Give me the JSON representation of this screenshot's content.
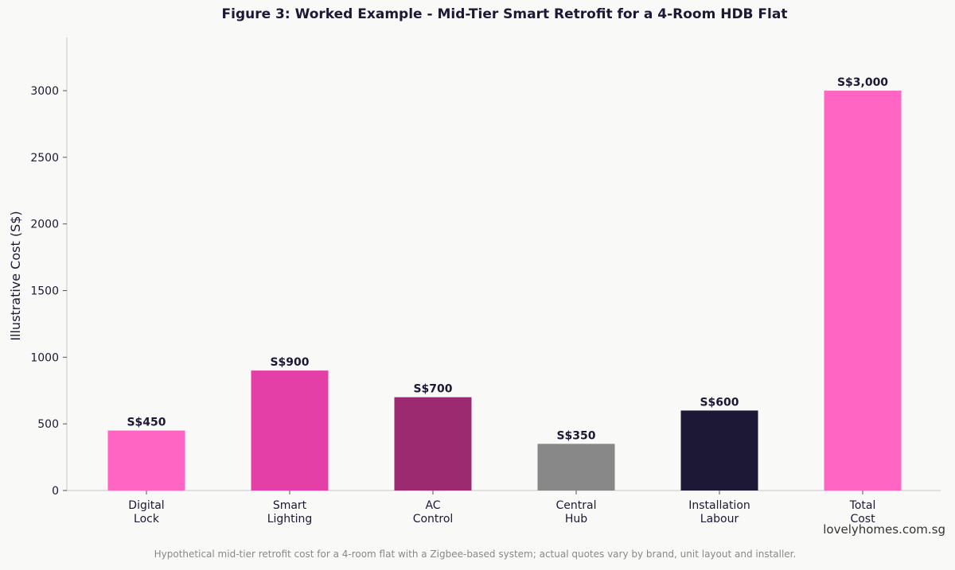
{
  "chart_data": {
    "type": "bar",
    "title": "Figure 3: Worked Example - Mid-Tier Smart Retrofit for a 4-Room HDB Flat",
    "xlabel": "",
    "ylabel": "Illustrative Cost (S$)",
    "ylim": [
      0,
      3400
    ],
    "yticks": [
      0,
      500,
      1000,
      1500,
      2000,
      2500,
      3000
    ],
    "grid": false,
    "categories": [
      [
        "Digital",
        "Lock"
      ],
      [
        "Smart",
        "Lighting"
      ],
      [
        "AC",
        "Control"
      ],
      [
        "Central",
        "Hub"
      ],
      [
        "Installation",
        "Labour"
      ],
      [
        "Total",
        "Cost"
      ]
    ],
    "values": [
      450,
      900,
      700,
      350,
      600,
      3000
    ],
    "data_labels": [
      "S$450",
      "S$900",
      "S$700",
      "S$350",
      "S$600",
      "S$3,000"
    ],
    "colors": [
      "#ff66c4",
      "#e33fa6",
      "#9c2a70",
      "#888888",
      "#1c1836",
      "#ff66c4"
    ]
  },
  "watermark": "lovelyhomes.com.sg",
  "footnote": "Hypothetical mid-tier retrofit cost for a 4-room flat with a Zigbee-based system; actual quotes vary by brand, unit layout and installer."
}
